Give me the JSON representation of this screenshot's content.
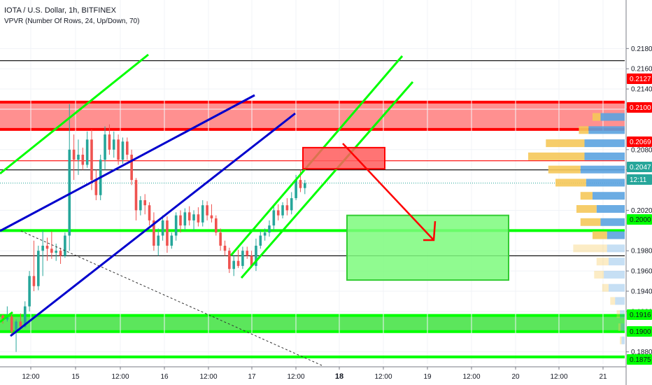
{
  "header": {
    "title": "IOTA / U.S. Dollar, 1h, BITFINEX",
    "indicator": "VPVR (Number Of Rows, 24, Up/Down, 70)"
  },
  "chart_data": {
    "type": "candlestick",
    "symbol": "IOTA / U.S. Dollar",
    "interval": "1h",
    "exchange": "BITFINEX",
    "ylim": [
      0.1868,
      0.2228
    ],
    "price_ticks": [
      "0.2180",
      "0.2160",
      "0.2140",
      "0.2120",
      "0.2080",
      "0.2060",
      "0.2020",
      "0.1980",
      "0.1960",
      "0.1940",
      "0.1920",
      "0.1880"
    ],
    "time_ticks": [
      "12:00",
      "15",
      "12:00",
      "16",
      "12:00",
      "17",
      "12:00",
      "18",
      "12:00",
      "19",
      "12:00",
      "20",
      "12:00",
      "21"
    ],
    "price_labels": [
      {
        "value": "0.2127",
        "color": "#ff0000"
      },
      {
        "value": "0.2100",
        "color": "#ff0000"
      },
      {
        "value": "0.2069",
        "color": "#ff0000"
      },
      {
        "value": "0.2047",
        "color": "#26a69a"
      },
      {
        "value": "12:11",
        "color": "#26a69a"
      },
      {
        "value": "0.2000",
        "color": "#00ff00"
      },
      {
        "value": "0.1916",
        "color": "#00ff00"
      },
      {
        "value": "0.1900",
        "color": "#00ff00"
      },
      {
        "value": "0.1875",
        "color": "#00ff00"
      }
    ],
    "resistance_zone": [
      0.21,
      0.2127
    ],
    "support_zone": [
      0.19,
      0.1916
    ],
    "levels": [
      {
        "price": 0.2168,
        "color": "#000000"
      },
      {
        "price": 0.2069,
        "color": "#ff0000"
      },
      {
        "price": 0.206,
        "color": "#000000"
      },
      {
        "price": 0.2047,
        "color": "#26a69a",
        "style": "dotted"
      },
      {
        "price": 0.2,
        "color": "#00ff00"
      },
      {
        "price": 0.1975,
        "color": "#000000"
      },
      {
        "price": 0.1875,
        "color": "#00ff00"
      }
    ],
    "colors": {
      "up": "#26a69a",
      "down": "#ef5350",
      "resistance": "#ff0000",
      "support": "#00ff00",
      "trend": "#0000cd",
      "volume_up": "#5ba3e0",
      "volume_down": "#f5c85a"
    },
    "candles": [
      [
        0.1916,
        0.1917,
        0.1908,
        0.1912
      ],
      [
        0.1912,
        0.1925,
        0.191,
        0.1915
      ],
      [
        0.1915,
        0.1918,
        0.1896,
        0.19
      ],
      [
        0.19,
        0.1912,
        0.188,
        0.191
      ],
      [
        0.191,
        0.1918,
        0.1902,
        0.1905
      ],
      [
        0.1905,
        0.193,
        0.1904,
        0.1925
      ],
      [
        0.1925,
        0.196,
        0.192,
        0.1955
      ],
      [
        0.1955,
        0.199,
        0.194,
        0.1945
      ],
      [
        0.1945,
        0.1985,
        0.1941,
        0.198
      ],
      [
        0.198,
        0.2,
        0.1955,
        0.1985
      ],
      [
        0.1985,
        0.1993,
        0.197,
        0.1982
      ],
      [
        0.1982,
        0.1999,
        0.1972,
        0.1978
      ],
      [
        0.1978,
        0.1987,
        0.197,
        0.198
      ],
      [
        0.198,
        0.1983,
        0.1967,
        0.1975
      ],
      [
        0.1975,
        0.1998,
        0.1973,
        0.1995
      ],
      [
        0.1995,
        0.2125,
        0.198,
        0.208
      ],
      [
        0.208,
        0.2095,
        0.205,
        0.207
      ],
      [
        0.207,
        0.209,
        0.2055,
        0.2075
      ],
      [
        0.2075,
        0.2082,
        0.206,
        0.2065
      ],
      [
        0.2065,
        0.2098,
        0.2062,
        0.209
      ],
      [
        0.209,
        0.21,
        0.204,
        0.205
      ],
      [
        0.205,
        0.206,
        0.203,
        0.2035
      ],
      [
        0.2035,
        0.2075,
        0.203,
        0.207
      ],
      [
        0.207,
        0.2103,
        0.206,
        0.2095
      ],
      [
        0.2095,
        0.2105,
        0.2075,
        0.208
      ],
      [
        0.208,
        0.2098,
        0.2072,
        0.209
      ],
      [
        0.209,
        0.2095,
        0.2065,
        0.207
      ],
      [
        0.207,
        0.2092,
        0.2066,
        0.2088
      ],
      [
        0.2088,
        0.2092,
        0.207,
        0.2075
      ],
      [
        0.2075,
        0.208,
        0.2045,
        0.205
      ],
      [
        0.205,
        0.2052,
        0.201,
        0.202
      ],
      [
        0.202,
        0.2034,
        0.2015,
        0.203
      ],
      [
        0.203,
        0.2036,
        0.2016,
        0.2025
      ],
      [
        0.2025,
        0.2028,
        0.2005,
        0.201
      ],
      [
        0.201,
        0.2018,
        0.198,
        0.1985
      ],
      [
        0.1985,
        0.2002,
        0.1975,
        0.1995
      ],
      [
        0.1995,
        0.2015,
        0.199,
        0.201
      ],
      [
        0.201,
        0.2014,
        0.1978,
        0.1985
      ],
      [
        0.1985,
        0.1998,
        0.1982,
        0.1995
      ],
      [
        0.1995,
        0.2018,
        0.199,
        0.2015
      ],
      [
        0.2015,
        0.202,
        0.1998,
        0.2005
      ],
      [
        0.2005,
        0.2022,
        0.2,
        0.2018
      ],
      [
        0.2018,
        0.2024,
        0.2005,
        0.201
      ],
      [
        0.201,
        0.202,
        0.2,
        0.2016
      ],
      [
        0.2016,
        0.2023,
        0.2004,
        0.2008
      ],
      [
        0.2008,
        0.203,
        0.2004,
        0.2025
      ],
      [
        0.2025,
        0.2029,
        0.201,
        0.2015
      ],
      [
        0.2015,
        0.2026,
        0.2008,
        0.2012
      ],
      [
        0.2012,
        0.2015,
        0.1995,
        0.1998
      ],
      [
        0.1998,
        0.2002,
        0.198,
        0.1985
      ],
      [
        0.1985,
        0.199,
        0.1975,
        0.198
      ],
      [
        0.198,
        0.1983,
        0.1958,
        0.1962
      ],
      [
        0.1962,
        0.1976,
        0.1955,
        0.197
      ],
      [
        0.197,
        0.1981,
        0.1963,
        0.1965
      ],
      [
        0.1965,
        0.1984,
        0.1962,
        0.198
      ],
      [
        0.198,
        0.1984,
        0.1972,
        0.1975
      ],
      [
        0.1975,
        0.198,
        0.1963,
        0.1965
      ],
      [
        0.1965,
        0.1992,
        0.196,
        0.1985
      ],
      [
        0.1985,
        0.2,
        0.1982,
        0.1995
      ],
      [
        0.1995,
        0.2002,
        0.199,
        0.1998
      ],
      [
        0.1998,
        0.201,
        0.1994,
        0.2005
      ],
      [
        0.2005,
        0.2025,
        0.2,
        0.202
      ],
      [
        0.202,
        0.2026,
        0.201,
        0.2015
      ],
      [
        0.2015,
        0.2028,
        0.2012,
        0.2025
      ],
      [
        0.2025,
        0.2032,
        0.2015,
        0.202
      ],
      [
        0.202,
        0.2038,
        0.2016,
        0.2032
      ],
      [
        0.2032,
        0.2055,
        0.203,
        0.205
      ],
      [
        0.205,
        0.206,
        0.2038,
        0.2042
      ],
      [
        0.2042,
        0.205,
        0.2036,
        0.2047
      ]
    ],
    "volume_profile": [
      {
        "price": 0.2112,
        "up": 30,
        "down": 10
      },
      {
        "price": 0.2099,
        "up": 45,
        "down": 12
      },
      {
        "price": 0.2086,
        "up": 50,
        "down": 48
      },
      {
        "price": 0.2073,
        "up": 50,
        "down": 70
      },
      {
        "price": 0.206,
        "up": 55,
        "down": 40
      },
      {
        "price": 0.2047,
        "up": 48,
        "down": 38
      },
      {
        "price": 0.2034,
        "up": 40,
        "down": 15
      },
      {
        "price": 0.2021,
        "up": 35,
        "down": 25
      },
      {
        "price": 0.2008,
        "up": 30,
        "down": 25
      },
      {
        "price": 0.1995,
        "up": 22,
        "down": 18
      },
      {
        "price": 0.1982,
        "up": 22,
        "down": 42
      },
      {
        "price": 0.1969,
        "up": 20,
        "down": 15
      },
      {
        "price": 0.1956,
        "up": 26,
        "down": 12
      },
      {
        "price": 0.1943,
        "up": 20,
        "down": 8
      },
      {
        "price": 0.193,
        "up": 12,
        "down": 6
      },
      {
        "price": 0.1917,
        "up": 6,
        "down": 4
      },
      {
        "price": 0.1904,
        "up": 5,
        "down": 3
      },
      {
        "price": 0.1891,
        "up": 4,
        "down": 2
      }
    ],
    "annotations": [
      {
        "type": "box",
        "color": "#ff0000",
        "label": "resistance-target-box",
        "price_range": [
          0.2061,
          0.2082
        ]
      },
      {
        "type": "box",
        "color": "#00ff00",
        "label": "support-target-box",
        "price_range": [
          0.1951,
          0.2015
        ]
      },
      {
        "type": "arrow",
        "color": "#ff0000",
        "label": "projected-move-arrow"
      }
    ]
  }
}
